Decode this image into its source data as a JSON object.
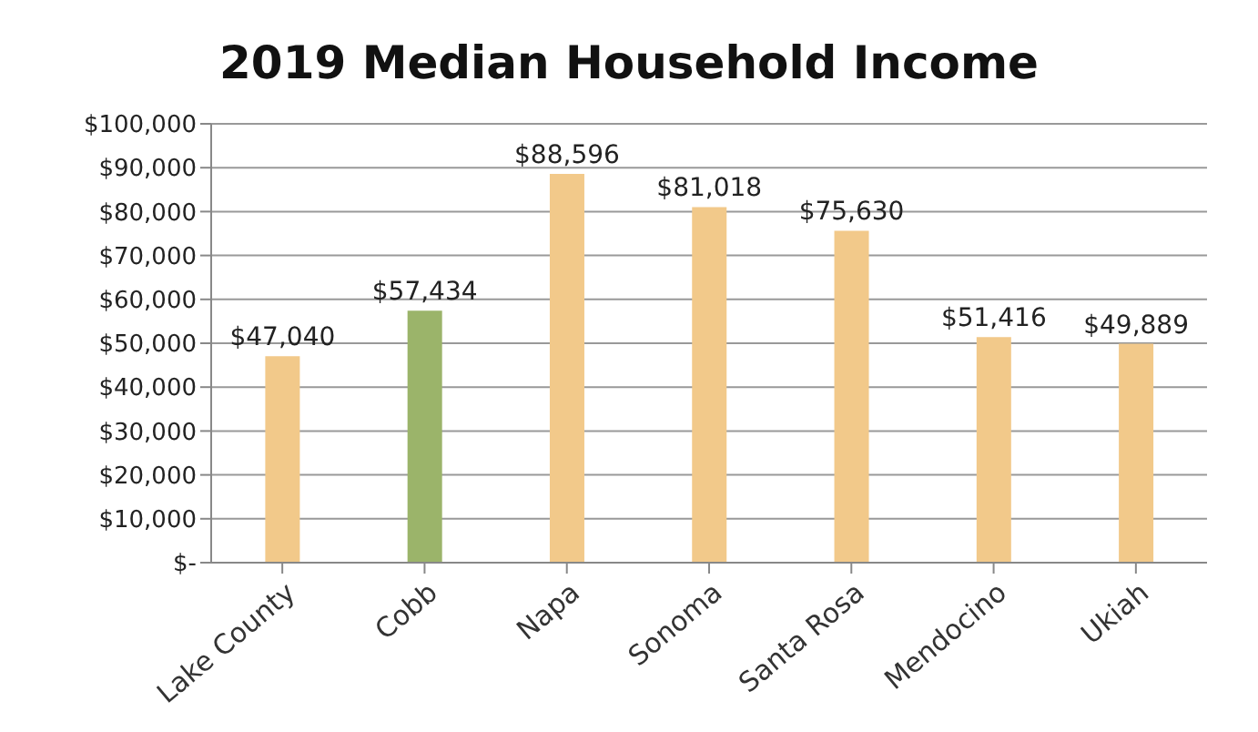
{
  "chart_data": {
    "type": "bar",
    "title": "2019 Median Household Income",
    "categories": [
      "Lake County",
      "Cobb",
      "Napa",
      "Sonoma",
      "Santa Rosa",
      "Mendocino",
      "Ukiah"
    ],
    "values": [
      47040,
      57434,
      88596,
      81018,
      75630,
      51416,
      49889
    ],
    "colors": [
      "#f2c98a",
      "#9bb46a",
      "#f2c98a",
      "#f2c98a",
      "#f2c98a",
      "#f2c98a",
      "#f2c98a"
    ],
    "value_labels": [
      "$47,040",
      "$57,434",
      "$88,596",
      "$81,018",
      "$75,630",
      "$51,416",
      "$49,889"
    ],
    "ylim": [
      0,
      100000
    ],
    "yticks": [
      {
        "value": 0,
        "label": "$-"
      },
      {
        "value": 10000,
        "label": "$10,000"
      },
      {
        "value": 20000,
        "label": "$20,000"
      },
      {
        "value": 30000,
        "label": "$30,000"
      },
      {
        "value": 40000,
        "label": "$40,000"
      },
      {
        "value": 50000,
        "label": "$50,000"
      },
      {
        "value": 60000,
        "label": "$60,000"
      },
      {
        "value": 70000,
        "label": "$70,000"
      },
      {
        "value": 80000,
        "label": "$80,000"
      },
      {
        "value": 90000,
        "label": "$90,000"
      },
      {
        "value": 100000,
        "label": "$100,000"
      }
    ],
    "grid": "y"
  }
}
